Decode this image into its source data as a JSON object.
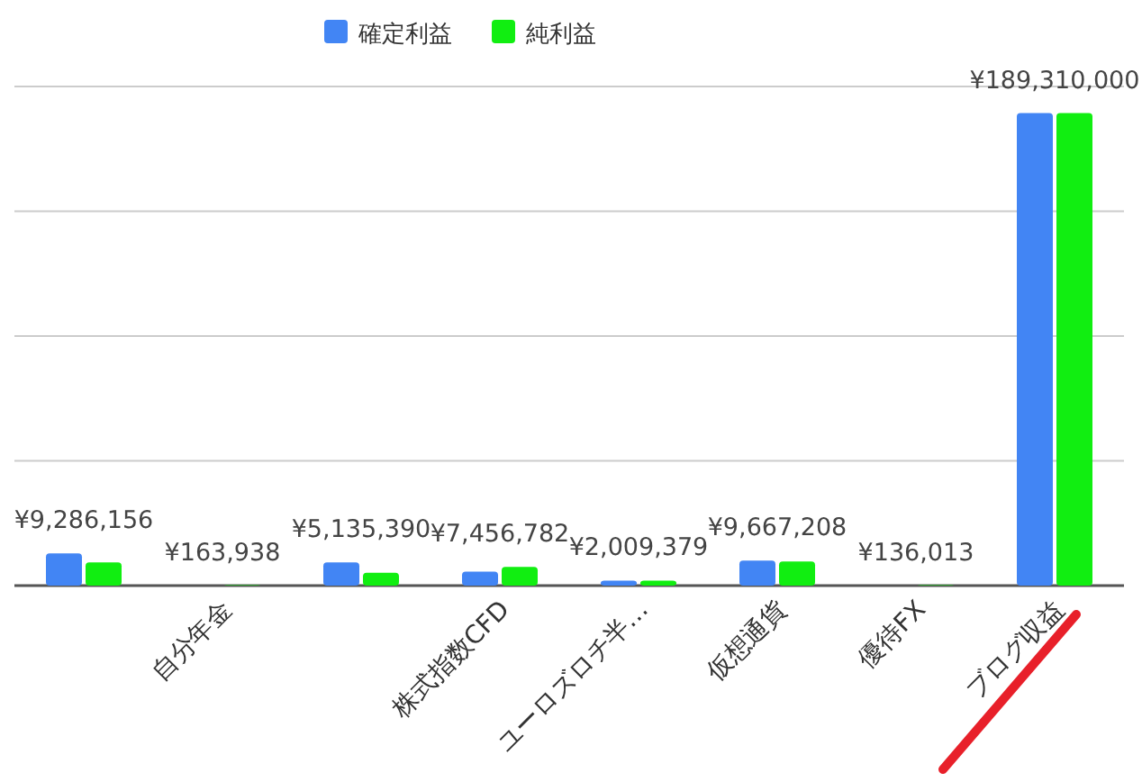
{
  "chart_data": {
    "type": "bar",
    "categories": [
      null,
      "自分年金",
      null,
      "株式指数CFD",
      "ユーロズロチ半…",
      "仮想通貨",
      "優待FX",
      "ブログ収益"
    ],
    "series": [
      {
        "name": "確定利益",
        "color": "#4285f4",
        "values": [
          12900000,
          null,
          9300000,
          5600000,
          2000000,
          10000000,
          null,
          189310000
        ]
      },
      {
        "name": "純利益",
        "color": "#11ee11",
        "values": [
          9286156,
          163938,
          5135390,
          7456782,
          2009379,
          9667208,
          136013,
          189310000
        ],
        "value_labels": [
          "¥9,286,156",
          "¥163,938",
          "¥5,135,390",
          "¥7,456,782",
          "¥2,009,379",
          "¥9,667,208",
          "¥136,013",
          "¥189,310,000"
        ]
      }
    ],
    "ylim": [
      0,
      200000000
    ],
    "yticks": [
      {
        "value": 0,
        "label": null
      },
      {
        "value": 50000000,
        "label": null
      },
      {
        "value": 100000000,
        "label": null
      },
      {
        "value": 150000000,
        "label": null
      },
      {
        "value": 200000000,
        "label": null
      }
    ],
    "grid": "y",
    "legend": "top",
    "tick_labels": "x"
  }
}
